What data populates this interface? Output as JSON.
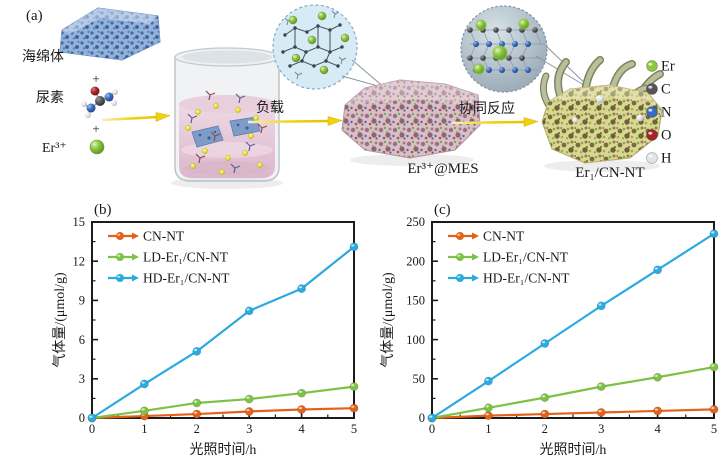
{
  "panel_a": {
    "label": "(a)",
    "reactants": {
      "sponge": "海绵体",
      "urea": "尿素",
      "er_ion": "Er³⁺"
    },
    "plus": "+",
    "arrow_load_label": "负载",
    "arrow_synergy_label": "协同反应",
    "product_mes_label": "Er³⁺@MES",
    "product_final_label": "Er₁/CN-NT",
    "atom_legend": [
      {
        "label": "Er",
        "color": "#8dc63f"
      },
      {
        "label": "C",
        "color": "#55555a"
      },
      {
        "label": "N",
        "color": "#3a6bbf"
      },
      {
        "label": "O",
        "color": "#a4262b"
      },
      {
        "label": "H",
        "color": "#e2e3e4"
      }
    ]
  },
  "chart_data": [
    {
      "panel": "(b)",
      "type": "line",
      "x": [
        0,
        1,
        2,
        3,
        4,
        5
      ],
      "xticks": [
        0,
        1,
        2,
        3,
        4,
        5
      ],
      "yticks": [
        0,
        3,
        6,
        9,
        12,
        15
      ],
      "xlim": [
        0,
        5
      ],
      "ylim": [
        0,
        15
      ],
      "xlabel": "光照时间/h",
      "ylabel": "气体量/(μmol/g)",
      "grid": false,
      "legend_position": "top-left",
      "series": [
        {
          "name": "CN-NT",
          "color": "#E2621B",
          "values": [
            0,
            0.15,
            0.3,
            0.5,
            0.65,
            0.75
          ]
        },
        {
          "name": "LD-Er₁/CN-NT",
          "color": "#7DC243",
          "values": [
            0,
            0.55,
            1.15,
            1.45,
            1.9,
            2.4
          ]
        },
        {
          "name": "HD-Er₁/CN-NT",
          "color": "#2BAADF",
          "values": [
            0,
            2.6,
            5.1,
            8.2,
            9.9,
            13.1
          ]
        }
      ]
    },
    {
      "panel": "(c)",
      "type": "line",
      "x": [
        0,
        1,
        2,
        3,
        4,
        5
      ],
      "xticks": [
        0,
        1,
        2,
        3,
        4,
        5
      ],
      "yticks": [
        0,
        50,
        100,
        150,
        200,
        250
      ],
      "xlim": [
        0,
        5
      ],
      "ylim": [
        0,
        250
      ],
      "xlabel": "光照时间/h",
      "ylabel": "气体量/(μmol/g)",
      "grid": false,
      "legend_position": "top-left",
      "series": [
        {
          "name": "CN-NT",
          "color": "#E2621B",
          "values": [
            0,
            3,
            5,
            7,
            9,
            11
          ]
        },
        {
          "name": "LD-Er₁/CN-NT",
          "color": "#7DC243",
          "values": [
            0,
            13,
            26,
            40,
            52,
            65
          ]
        },
        {
          "name": "HD-Er₁/CN-NT",
          "color": "#2BAADF",
          "values": [
            0,
            47,
            95,
            143,
            189,
            235
          ]
        }
      ]
    }
  ]
}
